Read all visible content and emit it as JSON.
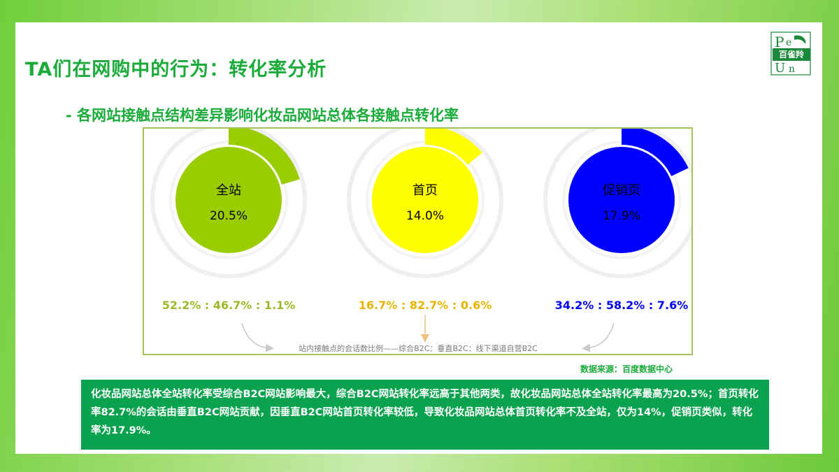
{
  "title": "TA们在网购中的行为：转化率分析",
  "subtitle": "- 各网站接触点结构差异影响化妆品网站总体各接触点转化率",
  "logo": {
    "text": "百雀羚"
  },
  "chart_data": {
    "type": "donut",
    "title": "",
    "charts": [
      {
        "label": "全站",
        "value_text": "20.5%",
        "value": 20.5,
        "color": "#9acd00",
        "ratio_text": "52.2% : 46.7% : 1.1%",
        "ratio_color": "#9ab928"
      },
      {
        "label": "首页",
        "value_text": "14.0%",
        "value": 14.0,
        "color": "#ffff00",
        "ratio_text": "16.7% : 82.7% : 0.6%",
        "ratio_color": "#e6b400"
      },
      {
        "label": "促销页",
        "value_text": "17.9%",
        "value": 17.9,
        "color": "#0000ff",
        "ratio_text": "34.2% : 58.2% : 7.6%",
        "ratio_color": "#0000ff"
      }
    ],
    "note": "站内接触点的会话数比例——综合B2C：垂直B2C：线下渠道自营B2C"
  },
  "source": "数据来源：百度数据中心",
  "summary": "化妆品网站总体全站转化率受综合B2C网站影响最大，综合B2C网站转化率远高于其他两类，故化妆品网站总体全站转化率最高为20.5%；首页转化率82.7%的会话由垂直B2C网站贡献，因垂直B2C网站首页转化率较低，导致化妆品网站总体首页转化率不及全站，仅为14%，促销页类似，转化率为17.9%。"
}
